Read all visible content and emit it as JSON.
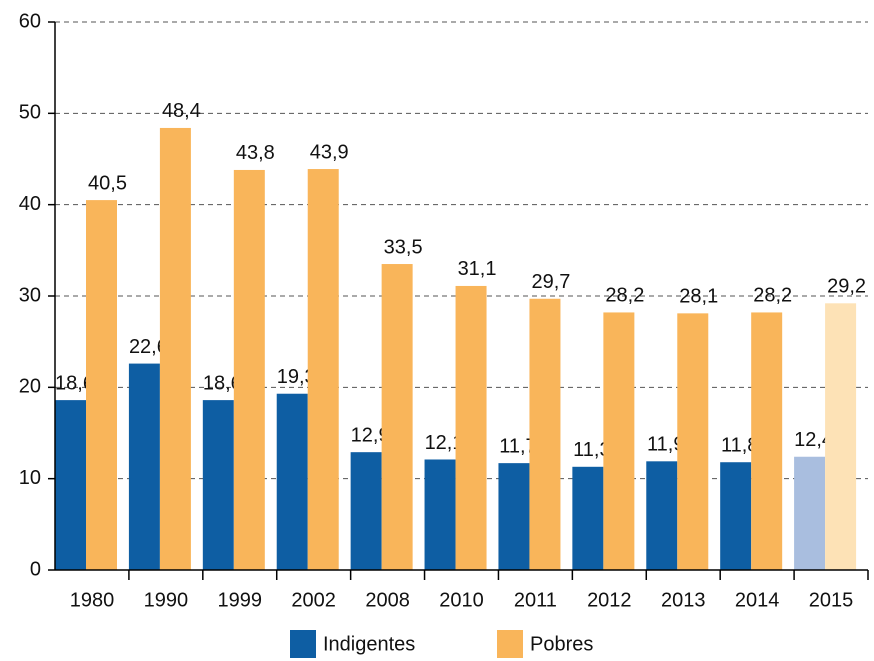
{
  "chart_data": {
    "type": "bar",
    "categories": [
      "1980",
      "1990",
      "1999",
      "2002",
      "2008",
      "2010",
      "2011",
      "2012",
      "2013",
      "2014",
      "2015"
    ],
    "series": [
      {
        "name": "Indigentes",
        "color": "#0e5ea3",
        "colors": [
          "#0e5ea3",
          "#0e5ea3",
          "#0e5ea3",
          "#0e5ea3",
          "#0e5ea3",
          "#0e5ea3",
          "#0e5ea3",
          "#0e5ea3",
          "#0e5ea3",
          "#0e5ea3",
          "#a9bedf"
        ],
        "values": [
          18.6,
          22.6,
          18.6,
          19.3,
          12.9,
          12.1,
          11.7,
          11.3,
          11.9,
          11.8,
          12.4
        ],
        "value_labels": [
          "18,6",
          "22,6",
          "18,6",
          "19,3",
          "12,9",
          "12,1",
          "11,7",
          "11,3",
          "11,9",
          "11,8",
          "12,4"
        ]
      },
      {
        "name": "Pobres",
        "color": "#f9b55a",
        "colors": [
          "#f9b55a",
          "#f9b55a",
          "#f9b55a",
          "#f9b55a",
          "#f9b55a",
          "#f9b55a",
          "#f9b55a",
          "#f9b55a",
          "#f9b55a",
          "#f9b55a",
          "#fde2b6"
        ],
        "values": [
          40.5,
          48.4,
          43.8,
          43.9,
          33.5,
          31.1,
          29.7,
          28.2,
          28.1,
          28.2,
          29.2
        ],
        "value_labels": [
          "40,5",
          "48,4",
          "43,8",
          "43,9",
          "33,5",
          "31,1",
          "29,7",
          "28,2",
          "28,1",
          "28,2",
          "29,2"
        ]
      }
    ],
    "ylim": [
      0,
      60
    ],
    "yticks": [
      0,
      10,
      20,
      30,
      40,
      50,
      60
    ],
    "grid": true
  }
}
